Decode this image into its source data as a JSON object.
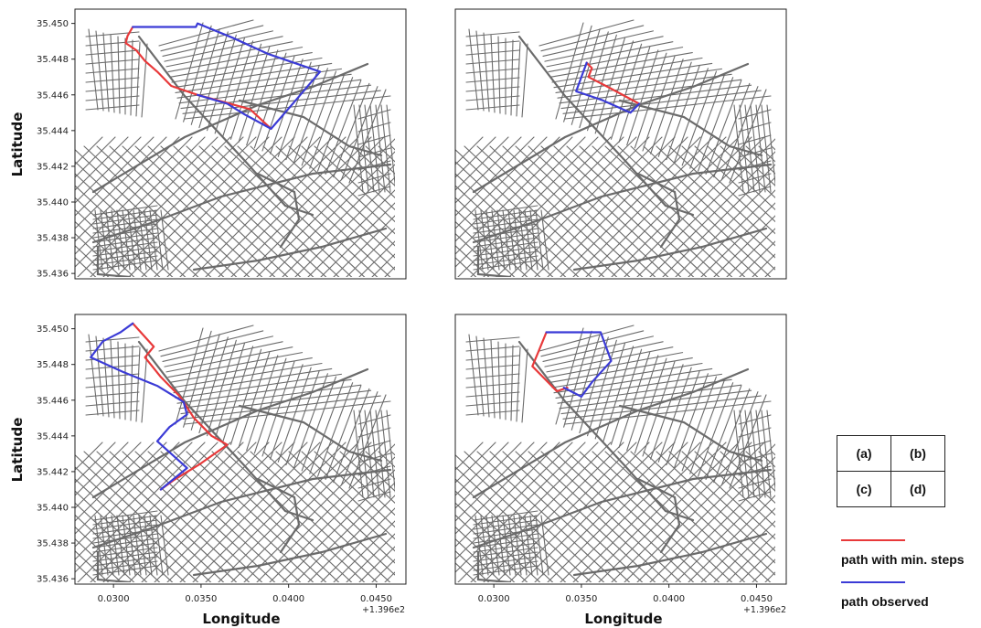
{
  "chart_data": {
    "type": "line",
    "xlabel": "Longitude",
    "ylabel": "Latitude",
    "x_offset_text": "+1.396e2",
    "x_ticks": [
      "0.0300",
      "0.0350",
      "0.0400",
      "0.0450"
    ],
    "y_ticks": [
      "35.436",
      "35.438",
      "35.440",
      "35.442",
      "35.444",
      "35.446",
      "35.448",
      "35.450"
    ],
    "xlim": [
      139.6278,
      139.6467
    ],
    "ylim": [
      35.4357,
      35.4508
    ],
    "grid": false,
    "panels": [
      {
        "label": "(a)",
        "series": [
          {
            "name": "path with min. steps",
            "color": "#e8393a",
            "points": [
              [
                139.6311,
                35.4498
              ],
              [
                139.6308,
                35.4493
              ],
              [
                139.6307,
                35.4489
              ],
              [
                139.6313,
                35.4485
              ],
              [
                139.6318,
                35.4479
              ],
              [
                139.6325,
                35.4473
              ],
              [
                139.6333,
                35.4465
              ],
              [
                139.6348,
                35.446
              ],
              [
                139.6363,
                35.4456
              ],
              [
                139.6378,
                35.4452
              ],
              [
                139.639,
                35.4441
              ]
            ]
          },
          {
            "name": "path observed",
            "color": "#3b3bd6",
            "points": [
              [
                139.6311,
                35.4498
              ],
              [
                139.6347,
                35.4498
              ],
              [
                139.6348,
                35.45
              ],
              [
                139.6368,
                35.4492
              ],
              [
                139.6388,
                35.4483
              ],
              [
                139.6418,
                35.4473
              ],
              [
                139.6405,
                35.4458
              ],
              [
                139.639,
                35.4441
              ],
              [
                139.6375,
                35.4449
              ],
              [
                139.6365,
                35.4455
              ],
              [
                139.6348,
                35.446
              ]
            ]
          }
        ]
      },
      {
        "label": "(b)",
        "series": [
          {
            "name": "path with min. steps",
            "color": "#e8393a",
            "points": [
              [
                139.6353,
                35.4478
              ],
              [
                139.6356,
                35.4475
              ],
              [
                139.6354,
                35.447
              ],
              [
                139.6366,
                35.4464
              ],
              [
                139.6383,
                35.4455
              ]
            ]
          },
          {
            "name": "path observed",
            "color": "#3b3bd6",
            "points": [
              [
                139.6353,
                35.4478
              ],
              [
                139.635,
                35.447
              ],
              [
                139.6347,
                35.4462
              ],
              [
                139.6362,
                35.4457
              ],
              [
                139.6378,
                35.445
              ],
              [
                139.6383,
                35.4455
              ]
            ]
          }
        ]
      },
      {
        "label": "(c)",
        "series": [
          {
            "name": "path with min. steps",
            "color": "#e8393a",
            "points": [
              [
                139.6311,
                35.4503
              ],
              [
                139.6323,
                35.449
              ],
              [
                139.6318,
                35.4484
              ],
              [
                139.6327,
                35.4473
              ],
              [
                139.6338,
                35.4462
              ],
              [
                139.6346,
                35.445
              ],
              [
                139.6356,
                35.444
              ],
              [
                139.6365,
                35.4435
              ],
              [
                139.6349,
                35.4424
              ],
              [
                139.6334,
                35.4415
              ],
              [
                139.6327,
                35.441
              ]
            ]
          },
          {
            "name": "path observed",
            "color": "#3b3bd6",
            "points": [
              [
                139.6311,
                35.4503
              ],
              [
                139.6304,
                35.4498
              ],
              [
                139.6294,
                35.4493
              ],
              [
                139.6287,
                35.4484
              ],
              [
                139.6305,
                35.4476
              ],
              [
                139.6325,
                35.4468
              ],
              [
                139.634,
                35.4459
              ],
              [
                139.6342,
                35.4452
              ],
              [
                139.6332,
                35.4445
              ],
              [
                139.6325,
                35.4437
              ],
              [
                139.6333,
                35.443
              ],
              [
                139.6342,
                35.4422
              ],
              [
                139.6327,
                35.441
              ]
            ]
          }
        ]
      },
      {
        "label": "(d)",
        "series": [
          {
            "name": "path with min. steps",
            "color": "#e8393a",
            "points": [
              [
                139.633,
                35.4498
              ],
              [
                139.6325,
                35.4486
              ],
              [
                139.6322,
                35.4479
              ],
              [
                139.6328,
                35.4473
              ],
              [
                139.6336,
                35.4465
              ],
              [
                139.6342,
                35.4467
              ]
            ]
          },
          {
            "name": "path observed",
            "color": "#3b3bd6",
            "points": [
              [
                139.633,
                35.4498
              ],
              [
                139.6339,
                35.4498
              ],
              [
                139.6361,
                35.4498
              ],
              [
                139.6367,
                35.4482
              ],
              [
                139.6356,
                35.447
              ],
              [
                139.635,
                35.4462
              ],
              [
                139.634,
                35.4467
              ]
            ]
          }
        ]
      }
    ]
  },
  "legend": {
    "grid_labels": [
      "(a)",
      "(b)",
      "(c)",
      "(d)"
    ],
    "entries": [
      {
        "label": "path with min. steps",
        "color": "#e8393a"
      },
      {
        "label": "path observed",
        "color": "#3b3bd6"
      }
    ]
  },
  "street_color": "#6b6b6b"
}
